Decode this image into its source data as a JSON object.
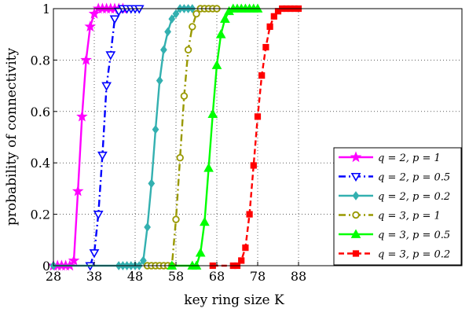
{
  "chart_data": {
    "type": "line",
    "xlabel": "key ring size K",
    "ylabel": "probability of connectivity",
    "xlim": [
      28,
      128
    ],
    "ylim": [
      0,
      1
    ],
    "xticks": [
      28,
      38,
      48,
      58,
      68,
      78,
      88
    ],
    "yticks": [
      0,
      0.2,
      0.4,
      0.6,
      0.8,
      1
    ],
    "ytick_labels": [
      "0",
      "0.2",
      "0.4",
      "0.6",
      "0.8",
      "1"
    ],
    "grid": true,
    "legend_position": "bottom-right",
    "series": [
      {
        "name": "q = 2, p = 1",
        "color": "#ff00ff",
        "line_style": "solid",
        "marker": "star",
        "x": [
          28,
          29,
          30,
          31,
          32,
          33,
          34,
          35,
          36,
          37,
          38,
          39,
          40,
          41,
          42,
          43,
          44,
          45
        ],
        "y": [
          0,
          0,
          0,
          0,
          0,
          0.02,
          0.29,
          0.58,
          0.8,
          0.93,
          0.98,
          1,
          1,
          1,
          1,
          1,
          1,
          1
        ]
      },
      {
        "name": "q = 2, p = 0.5",
        "color": "#0000ff",
        "line_style": "dashdot",
        "marker": "triangle-down",
        "x": [
          37,
          38,
          39,
          40,
          41,
          42,
          43,
          44,
          45,
          46,
          47,
          48,
          49
        ],
        "y": [
          0,
          0.05,
          0.2,
          0.43,
          0.7,
          0.82,
          0.96,
          0.99,
          1,
          1,
          1,
          1,
          1
        ]
      },
      {
        "name": "q = 2, p = 0.2",
        "color": "#33b0b0",
        "line_style": "solid",
        "marker": "diamond",
        "x": [
          28,
          44,
          45,
          46,
          47,
          48,
          49,
          50,
          51,
          52,
          53,
          54,
          55,
          56,
          57,
          58,
          59,
          60,
          61,
          62
        ],
        "y": [
          0,
          0,
          0,
          0,
          0,
          0,
          0,
          0.02,
          0.15,
          0.32,
          0.53,
          0.72,
          0.84,
          0.91,
          0.96,
          0.98,
          1,
          1,
          1,
          1
        ]
      },
      {
        "name": "q = 3, p = 1",
        "color": "#999900",
        "line_style": "dashdot",
        "marker": "circle",
        "x": [
          51,
          52,
          53,
          54,
          55,
          56,
          57,
          58,
          59,
          60,
          61,
          62,
          63,
          64,
          65,
          66,
          67,
          68
        ],
        "y": [
          0,
          0,
          0,
          0,
          0,
          0,
          0,
          0.18,
          0.42,
          0.66,
          0.84,
          0.93,
          0.98,
          1,
          1,
          1,
          1,
          1
        ]
      },
      {
        "name": "q = 3, p = 0.5",
        "color": "#00ff00",
        "line_style": "solid",
        "marker": "triangle-up",
        "x": [
          57,
          62,
          63,
          64,
          65,
          66,
          67,
          68,
          69,
          70,
          71,
          72,
          73,
          74,
          75,
          76,
          77,
          78
        ],
        "y": [
          0,
          0,
          0,
          0.05,
          0.17,
          0.38,
          0.59,
          0.78,
          0.9,
          0.96,
          0.99,
          1,
          1,
          1,
          1,
          1,
          1,
          1
        ]
      },
      {
        "name": "q = 3, p = 0.2",
        "color": "#ff0000",
        "line_style": "dashed",
        "marker": "square",
        "x": [
          67,
          72,
          73,
          74,
          75,
          76,
          77,
          78,
          79,
          80,
          81,
          82,
          83,
          84,
          85,
          86,
          87,
          88
        ],
        "y": [
          0,
          0,
          0,
          0.02,
          0.07,
          0.2,
          0.39,
          0.58,
          0.74,
          0.85,
          0.93,
          0.97,
          0.99,
          1,
          1,
          1,
          1,
          1
        ]
      }
    ]
  }
}
